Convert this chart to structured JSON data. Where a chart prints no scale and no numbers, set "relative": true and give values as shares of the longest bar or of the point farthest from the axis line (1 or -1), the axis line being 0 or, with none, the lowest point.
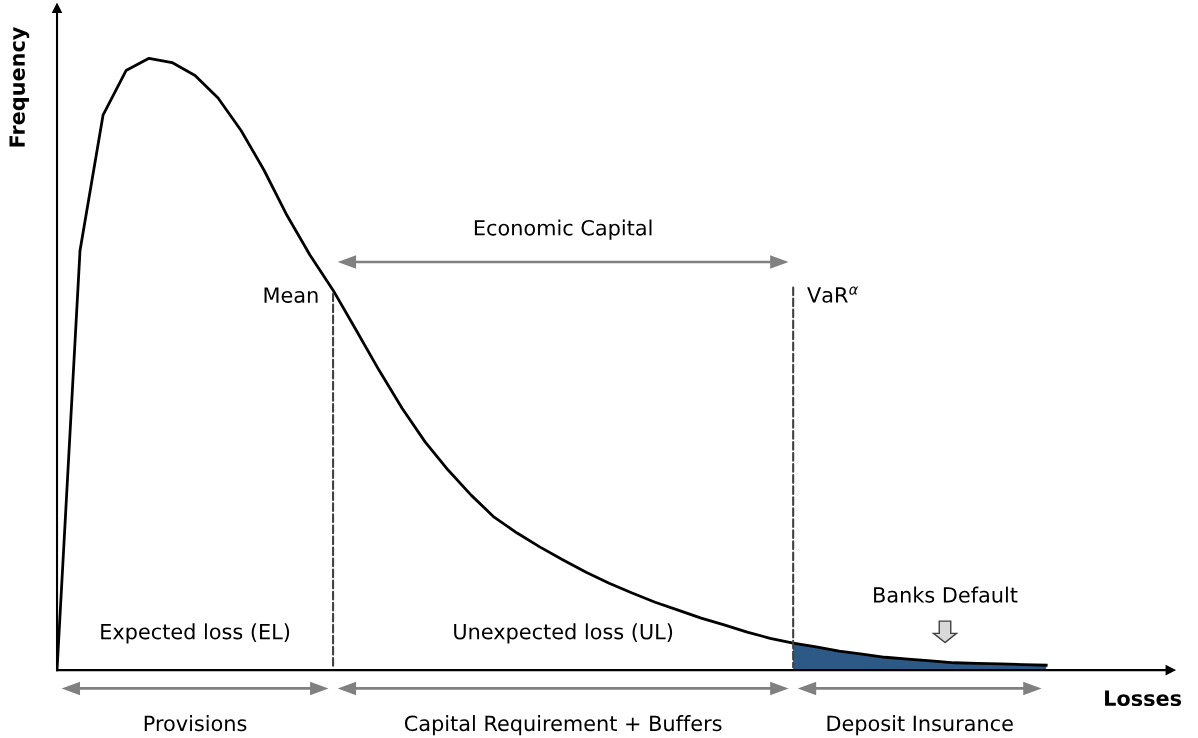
{
  "chart_data": {
    "type": "line",
    "relative": true,
    "xlabel": "Losses",
    "ylabel": "Frequency",
    "categories": [
      null,
      null,
      null,
      null,
      null,
      null,
      null,
      null,
      null,
      null,
      null,
      null,
      null,
      null,
      null,
      null,
      null,
      null,
      null,
      null,
      null,
      null,
      null,
      null,
      null,
      null,
      null,
      null,
      null,
      null,
      null,
      null,
      null,
      null,
      null,
      null,
      null,
      null,
      null,
      null,
      null,
      null,
      null,
      null
    ],
    "series": [
      {
        "color": "#000000",
        "values": [
          0,
          0.686,
          0.907,
          0.98,
          1,
          0.993,
          0.972,
          0.935,
          0.882,
          0.817,
          0.743,
          0.678,
          0.621,
          0.556,
          0.49,
          0.428,
          0.373,
          0.327,
          0.286,
          0.25,
          0.224,
          0.201,
          0.18,
          0.16,
          0.142,
          0.126,
          0.111,
          0.098,
          0.085,
          0.074,
          0.062,
          0.052,
          0.044,
          0.038,
          0.031,
          0.026,
          0.021,
          0.018,
          0.015,
          0.012,
          0.011,
          0.01,
          0.009,
          0.008
        ]
      },
      {
        "type": "area",
        "color": "#2d5986",
        "values": [
          null,
          null,
          null,
          null,
          null,
          null,
          null,
          null,
          null,
          null,
          null,
          null,
          null,
          null,
          null,
          null,
          null,
          null,
          null,
          null,
          null,
          null,
          null,
          null,
          null,
          null,
          null,
          null,
          null,
          null,
          null,
          null,
          0.044,
          0.038,
          0.031,
          0.026,
          0.021,
          0.018,
          0.015,
          0.012,
          0.011,
          0.01,
          0.009,
          0.008
        ]
      }
    ],
    "annotations": [
      "Economic Capital",
      "Expected loss (EL)",
      "Unexpected loss (UL)",
      "Banks Default",
      "Provisions",
      "Capital Requirement + Buffers",
      "Deposit Insurance",
      "Mean",
      "VaR$^{α}$"
    ],
    "legend": false
  }
}
